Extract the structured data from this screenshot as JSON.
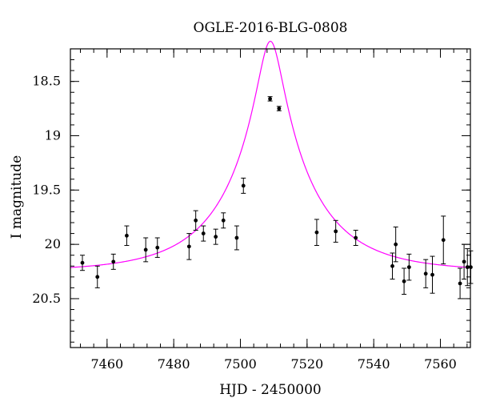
{
  "chart_data": {
    "type": "scatter",
    "title": "OGLE-2016-BLG-0808",
    "xlabel": "HJD - 2450000",
    "ylabel": "I magnitude",
    "xlim": [
      7449,
      7569
    ],
    "ylim": [
      20.95,
      18.2
    ],
    "y_inverted": true,
    "grid": false,
    "x_major_ticks": [
      7460,
      7480,
      7500,
      7520,
      7540,
      7560
    ],
    "x_minor_step": 4,
    "y_major_ticks": [
      18.5,
      19,
      19.5,
      20,
      20.5
    ],
    "y_minor_step": 0.1,
    "colors": {
      "data": "#000000",
      "model": "#ff00ff",
      "axes": "#000000"
    },
    "series": [
      {
        "style": "points-with-errorbars",
        "x": [
          7452.6,
          7457.1,
          7461.9,
          7465.9,
          7471.6,
          7475.1,
          7484.6,
          7486.6,
          7488.9,
          7492.6,
          7494.9,
          7498.9,
          7500.9,
          7508.9,
          7511.6,
          7522.9,
          7528.6,
          7534.6,
          7545.6,
          7546.6,
          7549.1,
          7550.6,
          7555.6,
          7557.6,
          7560.9,
          7565.9,
          7567.1,
          7568.1,
          7569.1
        ],
        "y": [
          20.17,
          20.3,
          20.16,
          19.92,
          20.05,
          20.03,
          20.02,
          19.78,
          19.9,
          19.93,
          19.78,
          19.94,
          19.46,
          18.66,
          18.75,
          19.89,
          19.88,
          19.94,
          20.2,
          20.0,
          20.34,
          20.21,
          20.27,
          20.28,
          19.96,
          20.36,
          20.16,
          20.21,
          20.21
        ],
        "err": [
          0.07,
          0.1,
          0.07,
          0.09,
          0.11,
          0.09,
          0.12,
          0.09,
          0.07,
          0.07,
          0.07,
          0.11,
          0.07,
          0.02,
          0.02,
          0.12,
          0.1,
          0.07,
          0.12,
          0.16,
          0.12,
          0.12,
          0.13,
          0.17,
          0.22,
          0.14,
          0.16,
          0.17,
          0.15
        ]
      },
      {
        "style": "model-curve",
        "model": "point-lens",
        "t0": 7509.0,
        "tE": 25,
        "u0": 0.143,
        "mag_baseline": 20.25
      }
    ]
  }
}
